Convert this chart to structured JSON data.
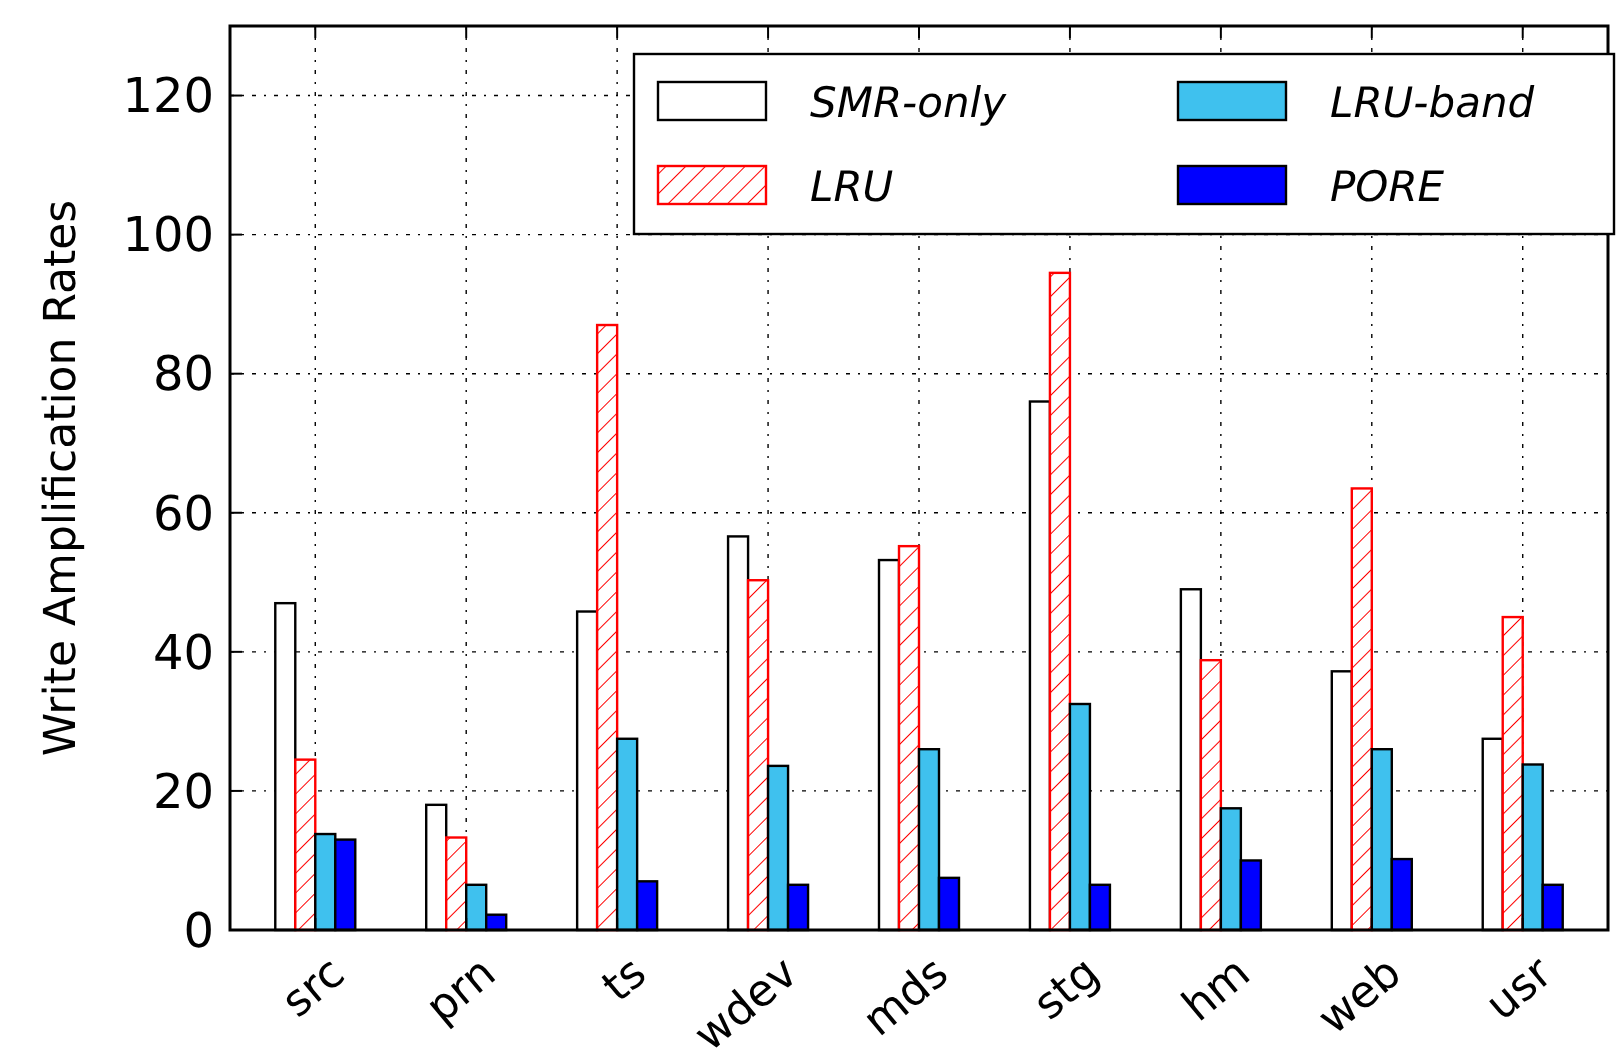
{
  "chart_data": {
    "type": "bar",
    "ylabel": "Write Amplification Rates",
    "categories": [
      "src",
      "prn",
      "ts",
      "wdev",
      "mds",
      "stg",
      "hm",
      "web",
      "usr"
    ],
    "series": [
      {
        "name": "SMR-only",
        "color": "#ffffff",
        "values": [
          47,
          18,
          45.8,
          56.6,
          53.2,
          76,
          49,
          37.2,
          27.5
        ]
      },
      {
        "name": "LRU",
        "color": "#ff0000",
        "values": [
          24.5,
          13.3,
          87,
          50.3,
          55.2,
          94.5,
          38.8,
          63.5,
          45
        ]
      },
      {
        "name": "LRU-band",
        "color": "#3fc1ee",
        "values": [
          13.8,
          6.5,
          27.5,
          23.6,
          26,
          32.5,
          17.5,
          26,
          23.8
        ]
      },
      {
        "name": "PORE",
        "color": "#0000ff",
        "values": [
          13,
          2.2,
          7,
          6.5,
          7.5,
          6.5,
          10,
          10.2,
          6.5
        ]
      }
    ],
    "ylim": [
      0,
      130
    ],
    "yticks": [
      0,
      20,
      40,
      60,
      80,
      100,
      120
    ],
    "grid": true,
    "legend": "top right"
  }
}
